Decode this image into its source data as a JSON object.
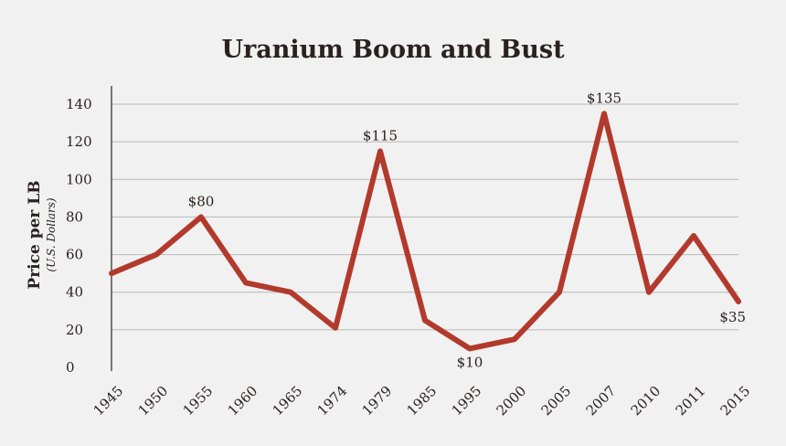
{
  "chart_data": {
    "type": "line",
    "title": "Uranium Boom and Bust",
    "ylabel": "Price per LB",
    "ylabel_sub": "(U.S. Dollars)",
    "xlabel": "",
    "categories": [
      "1945",
      "1950",
      "1955",
      "1960",
      "1965",
      "1974",
      "1979",
      "1985",
      "1995",
      "2000",
      "2005",
      "2007",
      "2010",
      "2011",
      "2015"
    ],
    "series": [
      {
        "values": [
          50,
          60,
          80,
          45,
          40,
          21,
          115,
          25,
          10,
          15,
          40,
          135,
          40,
          70,
          35
        ]
      }
    ],
    "ylim": [
      0,
      140
    ],
    "yticks": [
      0,
      20,
      40,
      60,
      80,
      100,
      120,
      140
    ],
    "grid": true,
    "line_color": "#b23a2c",
    "annotations": [
      {
        "index": 2,
        "text": "$80"
      },
      {
        "index": 6,
        "text": "$115"
      },
      {
        "index": 8,
        "text": "$10"
      },
      {
        "index": 11,
        "text": "$135"
      },
      {
        "index": 14,
        "text": "$35"
      }
    ]
  }
}
